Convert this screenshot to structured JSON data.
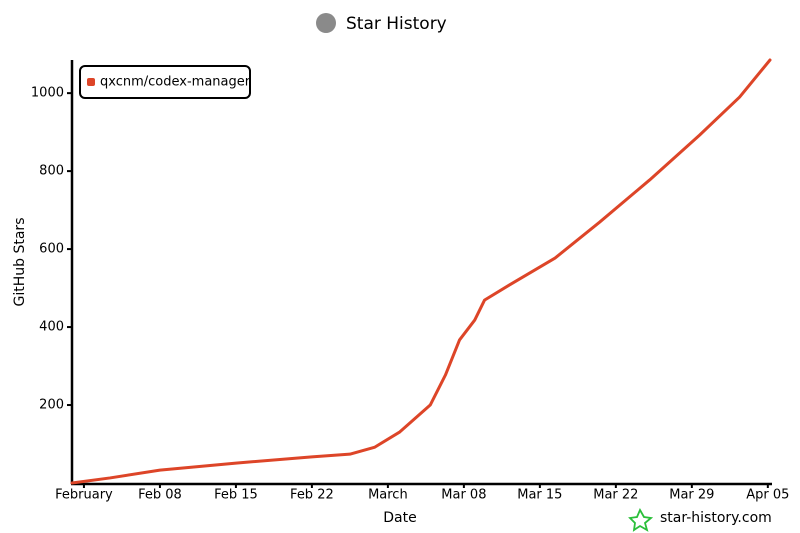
{
  "chart_data": {
    "type": "line",
    "title": "Star History",
    "x_label": "Date",
    "y_label": "GitHub Stars",
    "x": [
      -1.1,
      2.4,
      7,
      14,
      21,
      24.5,
      26.8,
      29.1,
      31.9,
      33.3,
      34.6,
      36,
      36.9,
      39.2,
      43.4,
      47.5,
      52.1,
      56.7,
      60.4,
      63.2
    ],
    "series": [
      {
        "name": "qxcnm/codex-manager",
        "color": "#dd4528",
        "values": [
          0,
          13,
          33,
          51,
          67,
          74,
          92,
          131,
          200,
          277,
          367,
          418,
          469,
          508,
          577,
          669,
          777,
          892,
          990,
          1085
        ]
      }
    ],
    "xlim": [
      -1.1,
      63.2
    ],
    "xticks": [
      {
        "value": 0,
        "label": "February"
      },
      {
        "value": 7,
        "label": "Feb 08"
      },
      {
        "value": 14,
        "label": "Feb 15"
      },
      {
        "value": 21,
        "label": "Feb 22"
      },
      {
        "value": 28,
        "label": "March"
      },
      {
        "value": 35,
        "label": "Mar 08"
      },
      {
        "value": 42,
        "label": "Mar 15"
      },
      {
        "value": 49,
        "label": "Mar 22"
      },
      {
        "value": 56,
        "label": "Mar 29"
      },
      {
        "value": 63,
        "label": "Apr 05"
      }
    ],
    "ylim": [
      0,
      1085
    ],
    "yticks": [
      200,
      400,
      600,
      800,
      1000
    ],
    "legend": "upper left",
    "watermark": "star-history.com"
  }
}
